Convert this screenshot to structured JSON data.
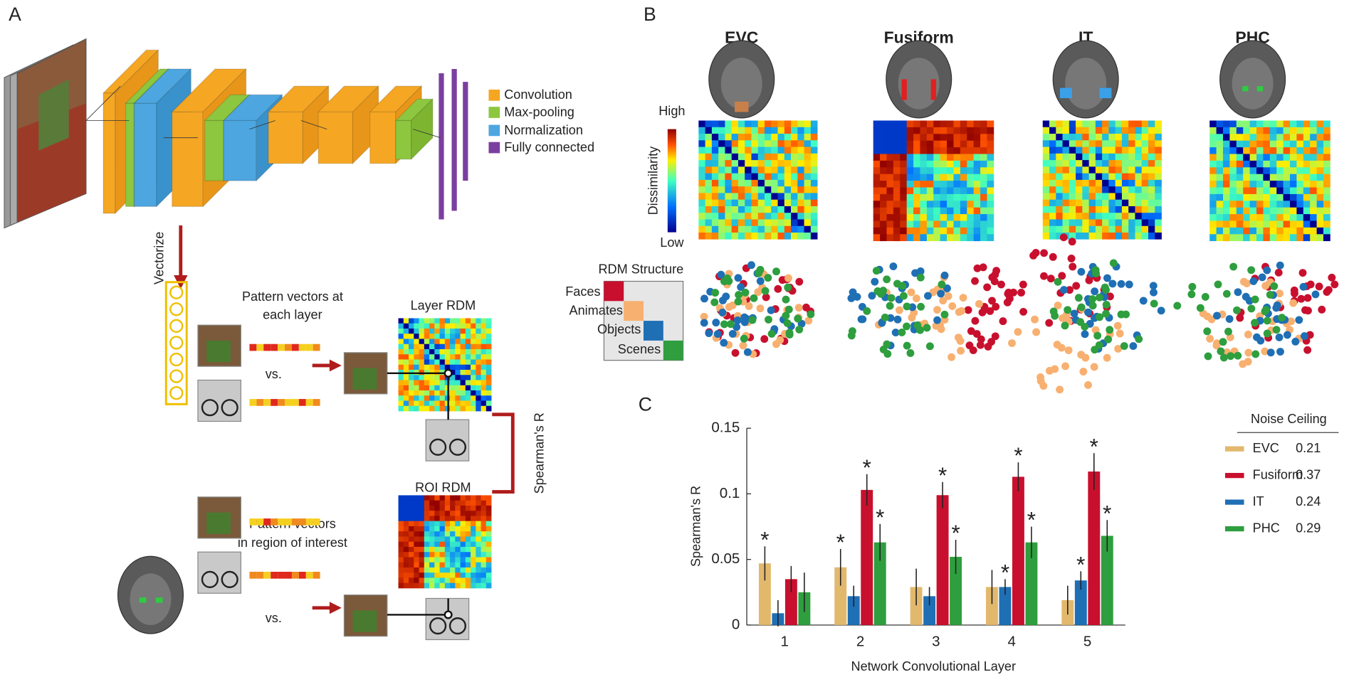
{
  "panel_labels": [
    "A",
    "B",
    "C"
  ],
  "panel_a": {
    "legend": [
      "Convolution",
      "Max-pooling",
      "Normalization",
      "Fully connected"
    ],
    "vectorize": "Vectorize",
    "layer_pattern": [
      "Pattern vectors at",
      "each layer"
    ],
    "vs": "vs.",
    "layer_rdm": "Layer RDM",
    "roi_pattern": [
      "Pattern vectors",
      "in region of interest"
    ],
    "roi_rdm": "ROI RDM",
    "comparison": "Spearman's R"
  },
  "panel_b": {
    "regions": [
      "EVC",
      "Fusiform",
      "IT",
      "PHC"
    ],
    "colorbar_high": "High",
    "colorbar_low": "Low",
    "colorbar_label": "Dissimilarity",
    "structure_title": "RDM Structure",
    "structure_categories": [
      "Faces",
      "Animates",
      "Objects",
      "Scenes"
    ]
  },
  "chart_data": {
    "type": "bar",
    "ylabel": "Spearman's R",
    "xlabel": "Network Convolutional Layer",
    "categories": [
      "1",
      "2",
      "3",
      "4",
      "5"
    ],
    "ylim": [
      0,
      0.15
    ],
    "yticks": [
      0,
      0.05,
      0.1,
      0.15
    ],
    "significance_label": "*",
    "legend_title": "Noise Ceiling",
    "series": [
      {
        "name": "EVC",
        "color": "#e2b86c",
        "values": [
          0.047,
          0.044,
          0.029,
          0.029,
          0.019
        ],
        "errors": [
          0.013,
          0.014,
          0.014,
          0.013,
          0.011
        ],
        "significant": [
          true,
          true,
          false,
          false,
          false
        ],
        "noise_ceiling": 0.21
      },
      {
        "name": "Fusiform",
        "color": "#c8102e",
        "values": [
          0.035,
          0.103,
          0.099,
          0.113,
          0.117
        ],
        "errors": [
          0.01,
          0.012,
          0.01,
          0.011,
          0.014
        ],
        "significant": [
          false,
          true,
          true,
          true,
          true
        ],
        "noise_ceiling": 0.37
      },
      {
        "name": "IT",
        "color": "#1f6fb5",
        "values": [
          0.009,
          0.022,
          0.022,
          0.029,
          0.034
        ],
        "errors": [
          0.01,
          0.008,
          0.007,
          0.006,
          0.007
        ],
        "significant": [
          false,
          false,
          false,
          true,
          true
        ],
        "noise_ceiling": 0.24
      },
      {
        "name": "PHC",
        "color": "#2e9e3e",
        "values": [
          0.025,
          0.063,
          0.052,
          0.063,
          0.068
        ],
        "errors": [
          0.015,
          0.014,
          0.013,
          0.012,
          0.012
        ],
        "significant": [
          false,
          true,
          true,
          true,
          true
        ],
        "noise_ceiling": 0.29
      }
    ]
  }
}
